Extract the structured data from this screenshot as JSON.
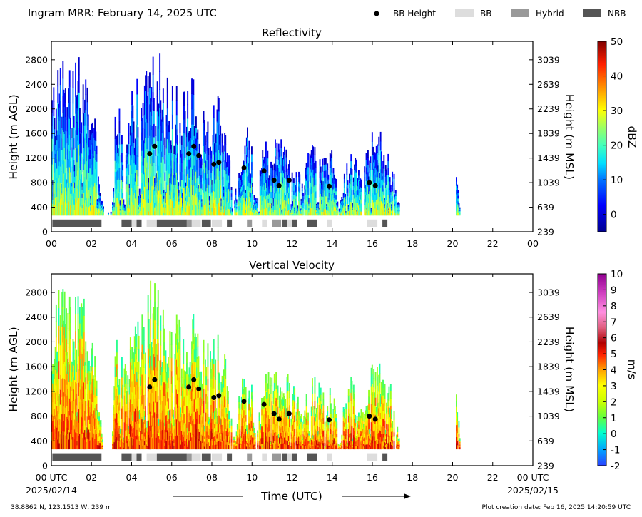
{
  "header": {
    "title": "Ingram MRR:  February 14, 2025 UTC",
    "legend": [
      {
        "label": "BB Height",
        "kind": "dot",
        "color": "#000000"
      },
      {
        "label": "BB",
        "kind": "box",
        "color": "#dddddd"
      },
      {
        "label": "Hybrid",
        "kind": "box",
        "color": "#999999"
      },
      {
        "label": "NBB",
        "kind": "box",
        "color": "#555555"
      }
    ]
  },
  "footer": {
    "location": "38.8862 N, 123.1513 W, 239 m",
    "creation": "Plot creation date: Feb 16, 2025 14:20:59 UTC",
    "xlabel": "Time (UTC)",
    "start_date": "2025/02/14",
    "end_date": "2025/02/15"
  },
  "chart_data": [
    {
      "type": "heatmap",
      "title": "Reflectivity",
      "xlabel": "",
      "ylabel": "Height (m AGL)",
      "ylabel_right": "Height (m MSL)",
      "colorbar_label": "dBZ",
      "xlim": [
        0,
        24
      ],
      "ylim": [
        0,
        3100
      ],
      "x_tick_labels": [
        "00",
        "02",
        "04",
        "06",
        "08",
        "10",
        "12",
        "14",
        "16",
        "18",
        "20",
        "22",
        "00"
      ],
      "y_ticks": [
        0,
        400,
        800,
        1200,
        1600,
        2000,
        2400,
        2800
      ],
      "y_tick_labels_right": [
        "239",
        "639",
        "1039",
        "1439",
        "1839",
        "2239",
        "2639",
        "3039"
      ],
      "colorbar_range": [
        -5,
        50
      ],
      "colorbar_ticks": [
        "0",
        "10",
        "20",
        "30",
        "40",
        "50"
      ]
    },
    {
      "type": "heatmap",
      "title": "Vertical Velocity",
      "xlabel": "Time (UTC)",
      "ylabel": "Height (m AGL)",
      "ylabel_right": "Height (m MSL)",
      "colorbar_label": "m/s",
      "xlim": [
        0,
        24
      ],
      "ylim": [
        0,
        3100
      ],
      "x_tick_labels": [
        "00 UTC",
        "02",
        "04",
        "06",
        "08",
        "10",
        "12",
        "14",
        "16",
        "18",
        "20",
        "22",
        "00 UTC"
      ],
      "y_ticks": [
        0,
        400,
        800,
        1200,
        1600,
        2000,
        2400,
        2800
      ],
      "y_tick_labels_right": [
        "239",
        "639",
        "1039",
        "1439",
        "1839",
        "2239",
        "2639",
        "3039"
      ],
      "colorbar_range": [
        -2,
        10
      ],
      "colorbar_ticks": [
        "-2",
        "-1",
        "0",
        "1",
        "2",
        "3",
        "4",
        "5",
        "6",
        "7",
        "8",
        "9",
        "10"
      ]
    }
  ],
  "bb_height": {
    "x": [
      4.9,
      5.15,
      6.85,
      7.1,
      7.35,
      8.1,
      8.35,
      9.6,
      10.6,
      11.1,
      11.35,
      11.85,
      13.85,
      15.85,
      16.15
    ],
    "y": [
      1270,
      1390,
      1270,
      1390,
      1240,
      1100,
      1130,
      1040,
      990,
      840,
      750,
      840,
      740,
      800,
      750
    ]
  },
  "bb_classification": [
    {
      "start": 0.05,
      "end": 2.5,
      "class": "NBB"
    },
    {
      "start": 3.5,
      "end": 4.0,
      "class": "NBB"
    },
    {
      "start": 4.0,
      "end": 4.25,
      "class": "BB"
    },
    {
      "start": 4.25,
      "end": 4.5,
      "class": "NBB"
    },
    {
      "start": 4.75,
      "end": 5.2,
      "class": "BB"
    },
    {
      "start": 5.25,
      "end": 6.75,
      "class": "NBB"
    },
    {
      "start": 6.75,
      "end": 7.0,
      "class": "Hybrid"
    },
    {
      "start": 7.0,
      "end": 7.45,
      "class": "BB"
    },
    {
      "start": 7.5,
      "end": 7.95,
      "class": "NBB"
    },
    {
      "start": 8.0,
      "end": 8.5,
      "class": "BB"
    },
    {
      "start": 8.75,
      "end": 9.0,
      "class": "NBB"
    },
    {
      "start": 9.75,
      "end": 10.0,
      "class": "Hybrid"
    },
    {
      "start": 10.5,
      "end": 10.75,
      "class": "BB"
    },
    {
      "start": 11.0,
      "end": 11.45,
      "class": "Hybrid"
    },
    {
      "start": 11.5,
      "end": 11.75,
      "class": "NBB"
    },
    {
      "start": 11.75,
      "end": 12.0,
      "class": "BB"
    },
    {
      "start": 12.0,
      "end": 12.25,
      "class": "NBB"
    },
    {
      "start": 12.75,
      "end": 13.25,
      "class": "NBB"
    },
    {
      "start": 13.75,
      "end": 14.0,
      "class": "BB"
    },
    {
      "start": 15.75,
      "end": 16.25,
      "class": "BB"
    },
    {
      "start": 16.5,
      "end": 16.75,
      "class": "NBB"
    }
  ]
}
